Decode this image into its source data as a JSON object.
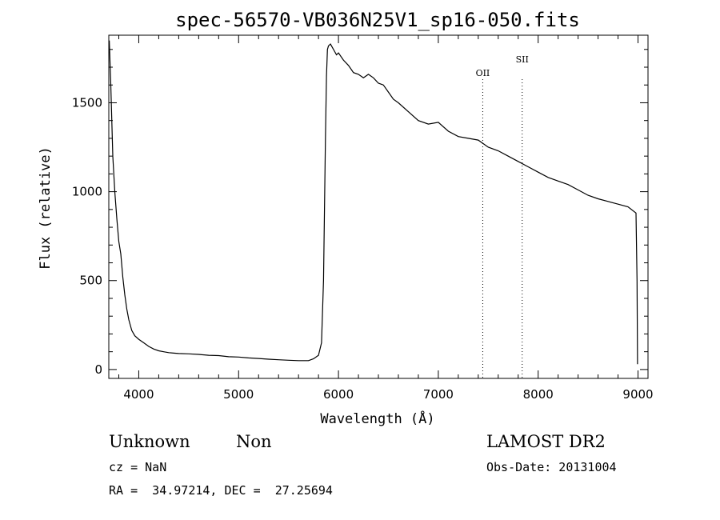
{
  "chart_data": {
    "type": "line",
    "title": "spec-56570-VB036N25V1_sp16-050.fits",
    "xlabel": "Wavelength (Å)",
    "ylabel": "Flux (relative)",
    "xlim": [
      3700,
      9100
    ],
    "ylim": [
      -50,
      1880
    ],
    "xticks": [
      4000,
      5000,
      6000,
      7000,
      8000,
      9000
    ],
    "yticks": [
      0,
      500,
      1000,
      1500
    ],
    "grid": false,
    "line_color": "#000000",
    "lines": [
      {
        "label": "OII",
        "x": 7445
      },
      {
        "label": "SII",
        "x": 7840
      }
    ],
    "series": [
      {
        "x": [
          3705,
          3720,
          3740,
          3760,
          3780,
          3800,
          3820,
          3840,
          3860,
          3880,
          3900,
          3930,
          3960,
          4000,
          4050,
          4100,
          4150,
          4200,
          4250,
          4300,
          4350,
          4400,
          4500,
          4600,
          4700,
          4800,
          4900,
          5000,
          5100,
          5200,
          5300,
          5400,
          5500,
          5600,
          5700,
          5750,
          5800,
          5830,
          5850,
          5860,
          5870,
          5880,
          5890,
          5900,
          5920,
          5940,
          5960,
          5980,
          6000,
          6050,
          6100,
          6150,
          6200,
          6250,
          6300,
          6350,
          6400,
          6450,
          6500,
          6550,
          6600,
          6700,
          6800,
          6900,
          7000,
          7100,
          7200,
          7300,
          7400,
          7500,
          7600,
          7700,
          7800,
          7900,
          8000,
          8100,
          8200,
          8300,
          8400,
          8500,
          8600,
          8700,
          8800,
          8900,
          8980,
          8990,
          8995
        ],
        "values": [
          1850,
          1600,
          1200,
          1000,
          850,
          720,
          650,
          520,
          420,
          340,
          280,
          220,
          190,
          170,
          150,
          130,
          115,
          105,
          100,
          95,
          92,
          90,
          88,
          85,
          80,
          78,
          72,
          70,
          65,
          62,
          58,
          55,
          52,
          50,
          50,
          60,
          80,
          150,
          500,
          900,
          1300,
          1650,
          1800,
          1820,
          1830,
          1810,
          1790,
          1770,
          1780,
          1740,
          1710,
          1670,
          1660,
          1640,
          1660,
          1640,
          1610,
          1600,
          1560,
          1520,
          1500,
          1450,
          1400,
          1380,
          1390,
          1340,
          1310,
          1300,
          1290,
          1250,
          1230,
          1200,
          1170,
          1140,
          1110,
          1080,
          1060,
          1040,
          1010,
          980,
          960,
          945,
          930,
          915,
          880,
          500,
          30
        ]
      }
    ]
  },
  "footer": {
    "object_name": "Unknown",
    "object_class": "Non",
    "cz": "cz = NaN",
    "coords": "RA =  34.97214, DEC =  27.25694",
    "survey": "LAMOST DR2",
    "obs_date": "Obs-Date: 20131004"
  }
}
